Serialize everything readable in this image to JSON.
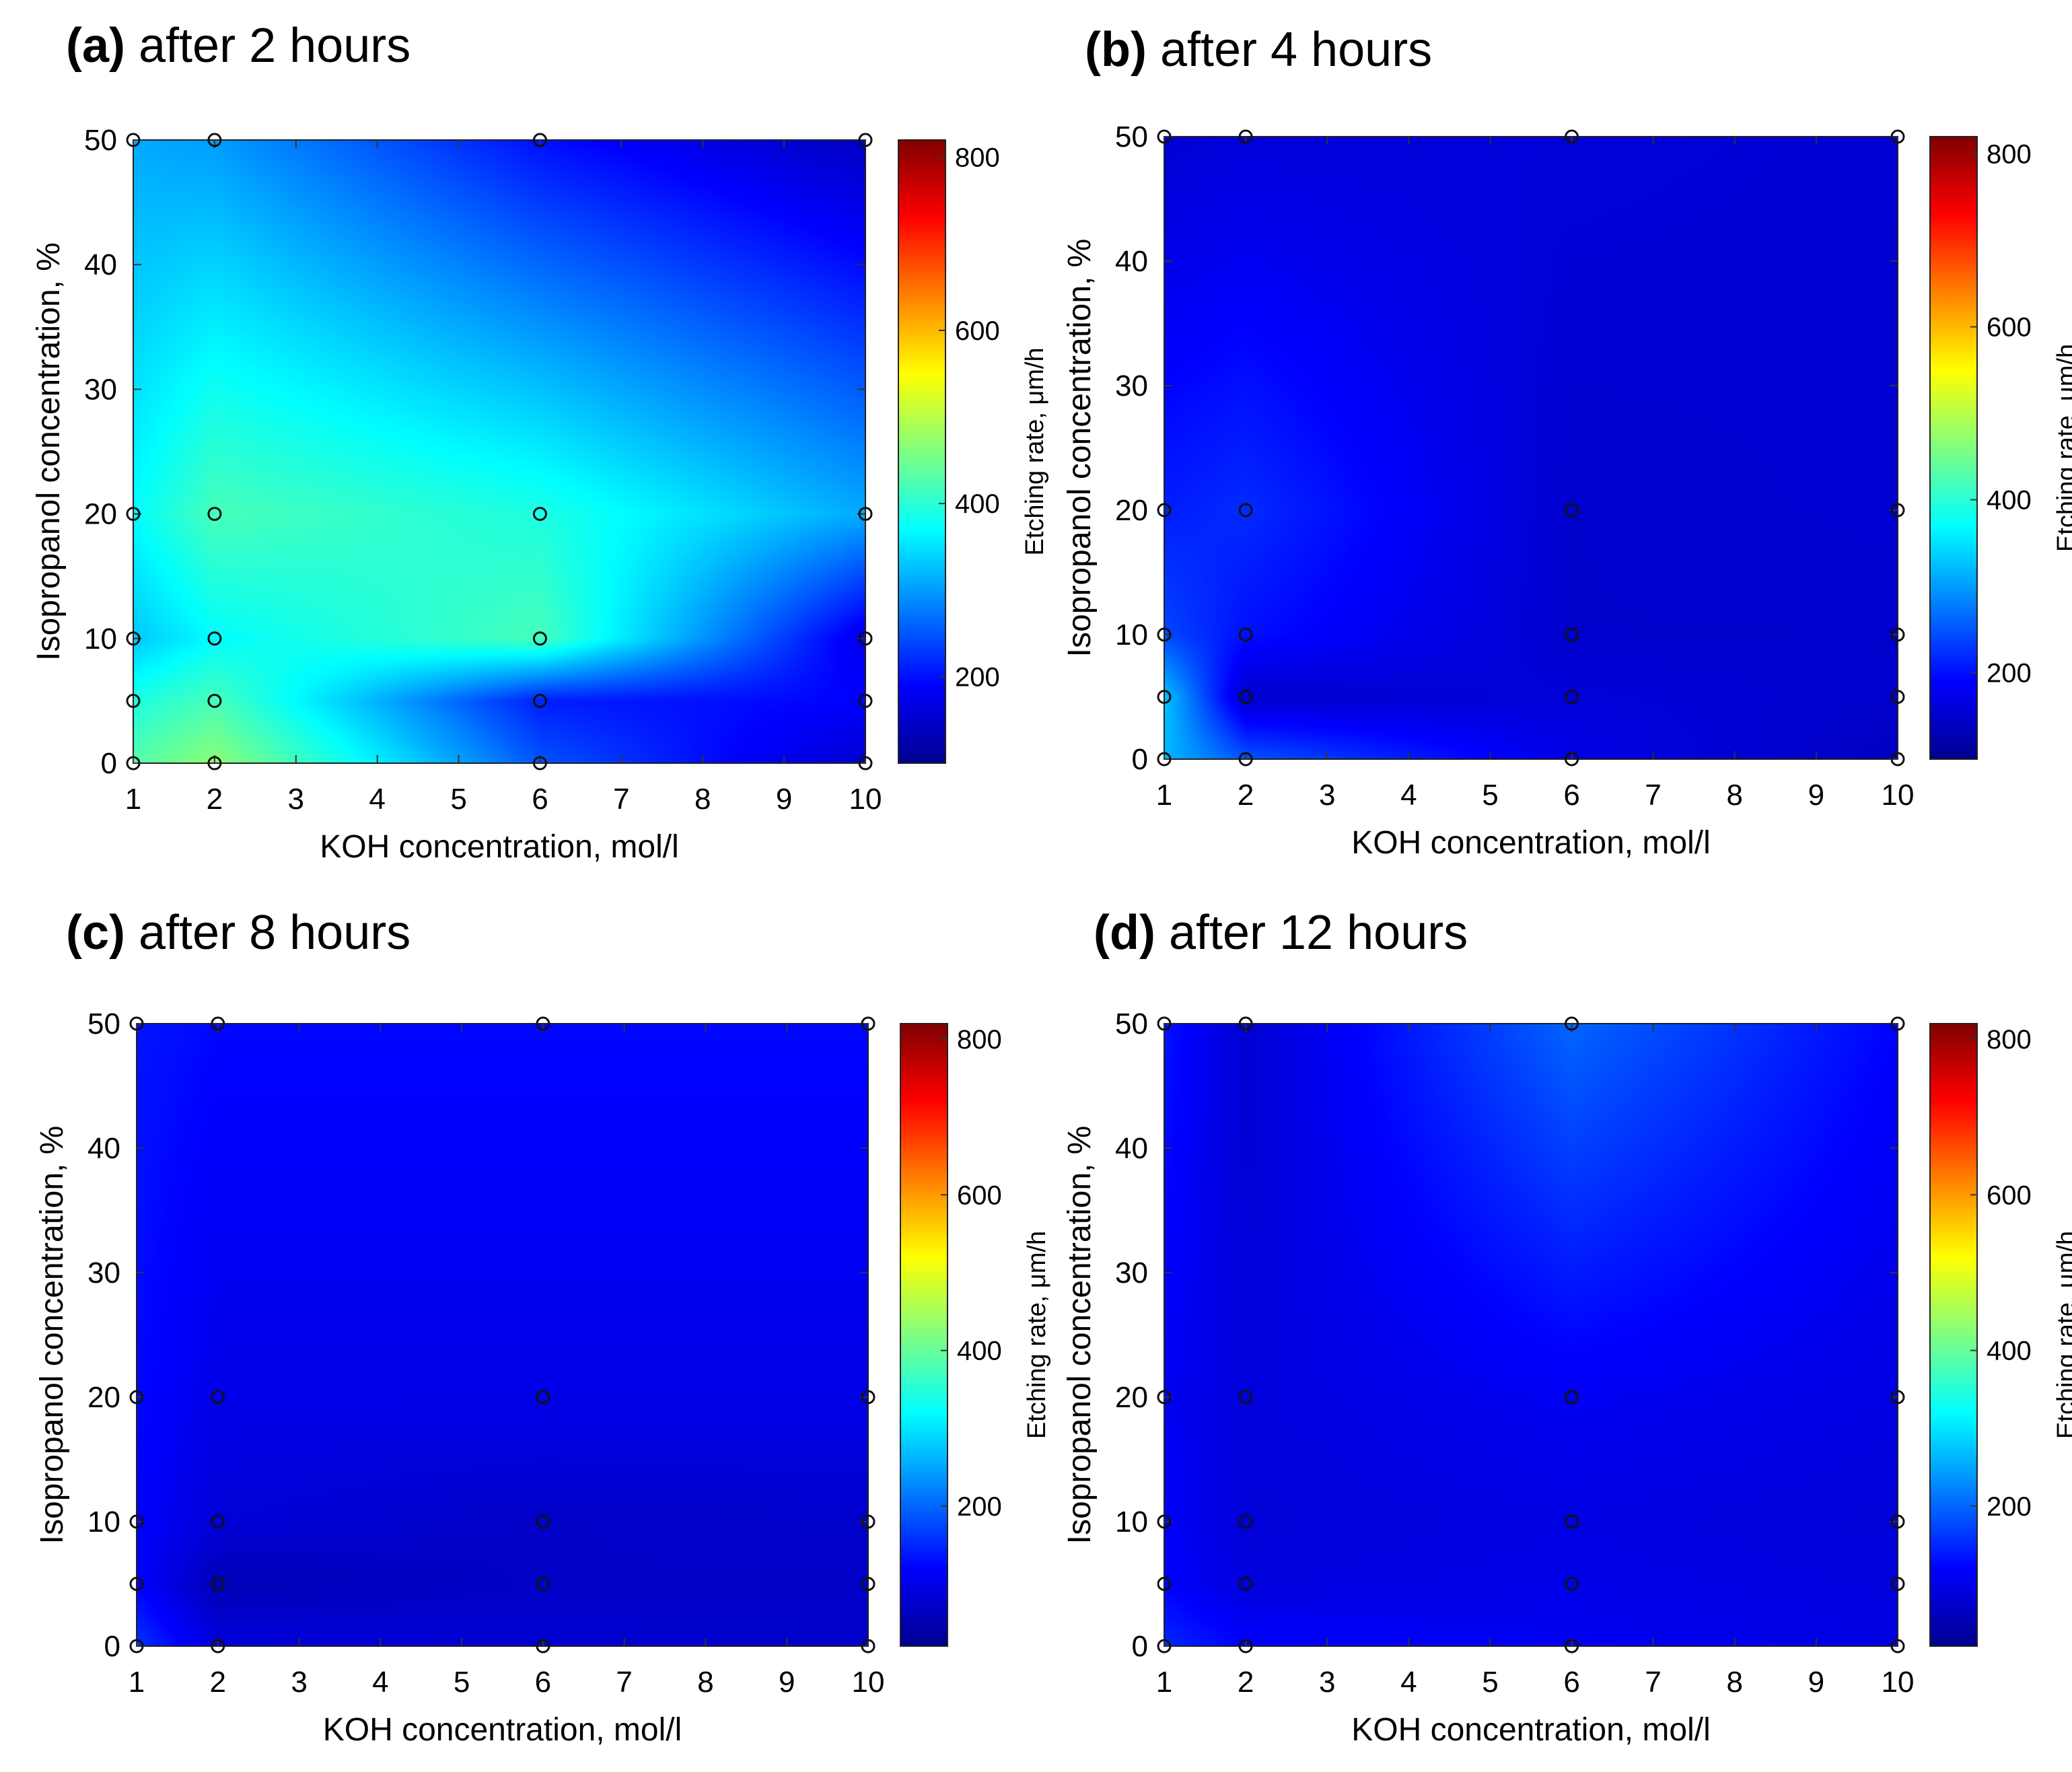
{
  "colormap": [
    "#00008f",
    "#0000ff",
    "#0080ff",
    "#00ffff",
    "#80ff80",
    "#ffff00",
    "#ff8000",
    "#ff0000",
    "#800000"
  ],
  "chart_data": [
    {
      "type": "heatmap",
      "label": "(a)",
      "title": "after 2 hours",
      "xlabel": "KOH concentration, mol/l",
      "ylabel": "Isopropanol concentration, %",
      "colorbar_label": "Etching rate, μm/h",
      "xlim": [
        1,
        10
      ],
      "ylim": [
        0,
        50
      ],
      "xticks": [
        1,
        2,
        3,
        4,
        5,
        6,
        7,
        8,
        9,
        10
      ],
      "yticks": [
        0,
        10,
        20,
        30,
        40,
        50
      ],
      "clim": [
        100,
        820
      ],
      "cticks": [
        200,
        400,
        600,
        800
      ],
      "x": [
        1,
        2,
        6,
        10
      ],
      "y": [
        0,
        5,
        10,
        20,
        50
      ],
      "z": [
        [
          430,
          470,
          250,
          150
        ],
        [
          390,
          420,
          210,
          190
        ],
        [
          330,
          370,
          420,
          170
        ],
        [
          370,
          420,
          390,
          310
        ],
        [
          310,
          300,
          200,
          140
        ]
      ]
    },
    {
      "type": "heatmap",
      "label": "(b)",
      "title": "after 4 hours",
      "xlabel": "KOH concentration, mol/l",
      "ylabel": "Isopropanol concentration, %",
      "colorbar_label": "Etching rate, μm/h",
      "xlim": [
        1,
        10
      ],
      "ylim": [
        0,
        50
      ],
      "xticks": [
        1,
        2,
        3,
        4,
        5,
        6,
        7,
        8,
        9,
        10
      ],
      "yticks": [
        0,
        10,
        20,
        30,
        40,
        50
      ],
      "clim": [
        100,
        820
      ],
      "cticks": [
        200,
        400,
        600,
        800
      ],
      "x": [
        1,
        2,
        6,
        10
      ],
      "y": [
        0,
        5,
        10,
        20,
        50
      ],
      "z": [
        [
          320,
          250,
          170,
          140
        ],
        [
          330,
          150,
          160,
          150
        ],
        [
          240,
          200,
          150,
          150
        ],
        [
          210,
          220,
          150,
          155
        ],
        [
          155,
          160,
          160,
          155
        ]
      ]
    },
    {
      "type": "heatmap",
      "label": "(c)",
      "title": "after 8 hours",
      "xlabel": "KOH concentration, mol/l",
      "ylabel": "Isopropanol concentration, %",
      "colorbar_label": "Etching rate, μm/h",
      "xlim": [
        1,
        10
      ],
      "ylim": [
        0,
        50
      ],
      "xticks": [
        1,
        2,
        3,
        4,
        5,
        6,
        7,
        8,
        9,
        10
      ],
      "yticks": [
        0,
        10,
        20,
        30,
        40,
        50
      ],
      "clim": [
        20,
        820
      ],
      "cticks": [
        200,
        400,
        600,
        800
      ],
      "x": [
        1,
        2,
        6,
        10
      ],
      "y": [
        0,
        5,
        10,
        20,
        50
      ],
      "z": [
        [
          160,
          90,
          80,
          75
        ],
        [
          120,
          55,
          70,
          70
        ],
        [
          120,
          85,
          70,
          75
        ],
        [
          125,
          100,
          100,
          100
        ],
        [
          135,
          125,
          125,
          125
        ]
      ]
    },
    {
      "type": "heatmap",
      "label": "(d)",
      "title": "after 12 hours",
      "xlabel": "KOH concentration, mol/l",
      "ylabel": "Isopropanol concentration, %",
      "colorbar_label": "Etching rate, μm/h",
      "xlim": [
        1,
        10
      ],
      "ylim": [
        0,
        50
      ],
      "xticks": [
        1,
        2,
        3,
        4,
        5,
        6,
        7,
        8,
        9,
        10
      ],
      "yticks": [
        0,
        10,
        20,
        30,
        40,
        50
      ],
      "clim": [
        20,
        820
      ],
      "cticks": [
        200,
        400,
        600,
        800
      ],
      "x": [
        1,
        2,
        6,
        10
      ],
      "y": [
        0,
        5,
        10,
        20,
        50
      ],
      "z": [
        [
          150,
          120,
          110,
          95
        ],
        [
          120,
          90,
          100,
          90
        ],
        [
          115,
          85,
          95,
          85
        ],
        [
          110,
          90,
          110,
          95
        ],
        [
          135,
          80,
          200,
          120
        ]
      ]
    }
  ]
}
